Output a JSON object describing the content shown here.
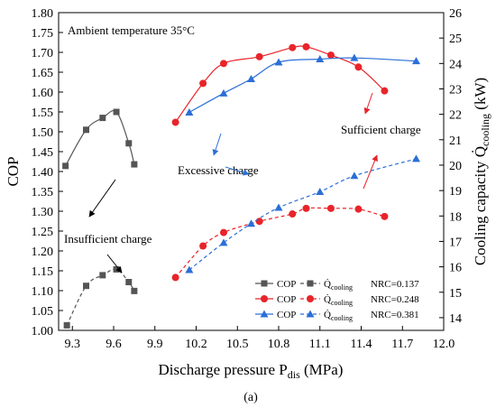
{
  "chart_data": {
    "type": "line",
    "ambient_label": "Ambient temperature 35°C",
    "xlabel": "Discharge pressure P",
    "xlabel_sub": "dis",
    "xlabel_unit": " (MPa)",
    "ylabel_left": "COP",
    "ylabel_right": "Cooling capacity Q̇",
    "ylabel_right_sub": "cooling",
    "ylabel_right_unit": " (kW)",
    "caption": "(a)",
    "xlim": [
      9.2,
      12.0
    ],
    "ylim_left": [
      1.0,
      1.8
    ],
    "ylim_right": [
      13.5,
      26
    ],
    "xticks": [
      "9.3",
      "9.6",
      "9.9",
      "10.2",
      "10.5",
      "10.8",
      "11.1",
      "11.4",
      "11.7",
      "12.0"
    ],
    "yticks_left": [
      "1.00",
      "1.05",
      "1.10",
      "1.15",
      "1.20",
      "1.25",
      "1.30",
      "1.35",
      "1.40",
      "1.45",
      "1.50",
      "1.55",
      "1.60",
      "1.65",
      "1.70",
      "1.75",
      "1.80"
    ],
    "yticks_right": [
      "14",
      "15",
      "16",
      "17",
      "18",
      "19",
      "20",
      "21",
      "22",
      "23",
      "24",
      "25",
      "26"
    ],
    "series": [
      {
        "nrc": "NRC=0.137",
        "color": "#555555",
        "marker": "square",
        "cop": [
          [
            9.25,
            1.414
          ],
          [
            9.4,
            1.505
          ],
          [
            9.52,
            1.535
          ],
          [
            9.62,
            1.55
          ],
          [
            9.71,
            1.471
          ],
          [
            9.75,
            1.418
          ]
        ],
        "cooling": [
          [
            9.26,
            13.7
          ],
          [
            9.4,
            15.25
          ],
          [
            9.52,
            15.67
          ],
          [
            9.62,
            15.9
          ],
          [
            9.71,
            15.4
          ],
          [
            9.75,
            15.05
          ]
        ]
      },
      {
        "nrc": "NRC=0.248",
        "color": "#e8242a",
        "marker": "circle",
        "cop": [
          [
            10.05,
            1.524
          ],
          [
            10.25,
            1.622
          ],
          [
            10.4,
            1.672
          ],
          [
            10.66,
            1.689
          ],
          [
            10.9,
            1.712
          ],
          [
            11.0,
            1.714
          ],
          [
            11.18,
            1.693
          ],
          [
            11.38,
            1.663
          ],
          [
            11.57,
            1.603
          ]
        ],
        "cooling": [
          [
            10.05,
            15.58
          ],
          [
            10.25,
            16.82
          ],
          [
            10.4,
            17.35
          ],
          [
            10.66,
            17.79
          ],
          [
            10.9,
            18.08
          ],
          [
            11.0,
            18.3
          ],
          [
            11.18,
            18.3
          ],
          [
            11.38,
            18.27
          ],
          [
            11.57,
            17.98
          ]
        ]
      },
      {
        "nrc": "NRC=0.381",
        "color": "#2b6fd6",
        "marker": "triangle",
        "cop": [
          [
            10.15,
            1.549
          ],
          [
            10.4,
            1.597
          ],
          [
            10.6,
            1.633
          ],
          [
            10.8,
            1.675
          ],
          [
            11.1,
            1.683
          ],
          [
            11.35,
            1.686
          ],
          [
            11.8,
            1.678
          ]
        ],
        "cooling": [
          [
            10.15,
            15.88
          ],
          [
            10.4,
            16.95
          ],
          [
            10.6,
            17.7
          ],
          [
            10.8,
            18.33
          ],
          [
            11.1,
            18.95
          ],
          [
            11.35,
            19.58
          ],
          [
            11.8,
            20.25
          ]
        ]
      }
    ],
    "legend": {
      "cop_label": "COP",
      "cooling_label": "Q̇",
      "cooling_sub": "cooling"
    },
    "annotations": [
      {
        "text": "Excessive charge",
        "color": "#000000"
      },
      {
        "text": "Sufficient charge",
        "color": "#000000"
      },
      {
        "text": "Insufficient charge",
        "color": "#000000"
      }
    ]
  }
}
